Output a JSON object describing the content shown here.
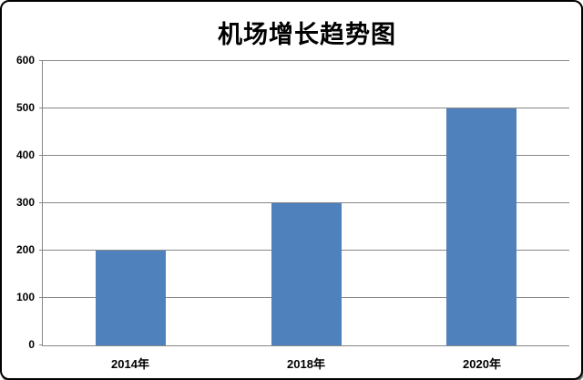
{
  "chart_data": {
    "type": "bar",
    "title": "机场增长趋势图",
    "categories": [
      "2014年",
      "2018年",
      "2020年"
    ],
    "values": [
      200,
      300,
      500
    ],
    "xlabel": "",
    "ylabel": "",
    "ylim": [
      0,
      600
    ],
    "ytick_interval": 100,
    "ytick_labels": [
      "0",
      "100",
      "200",
      "300",
      "400",
      "500",
      "600"
    ],
    "grid": true,
    "legend": "none",
    "bar_color": "#4f81bd",
    "axis_color": "#878787",
    "title_color": "#000000",
    "background_color": "#ffffff",
    "border_color": "#000000"
  }
}
